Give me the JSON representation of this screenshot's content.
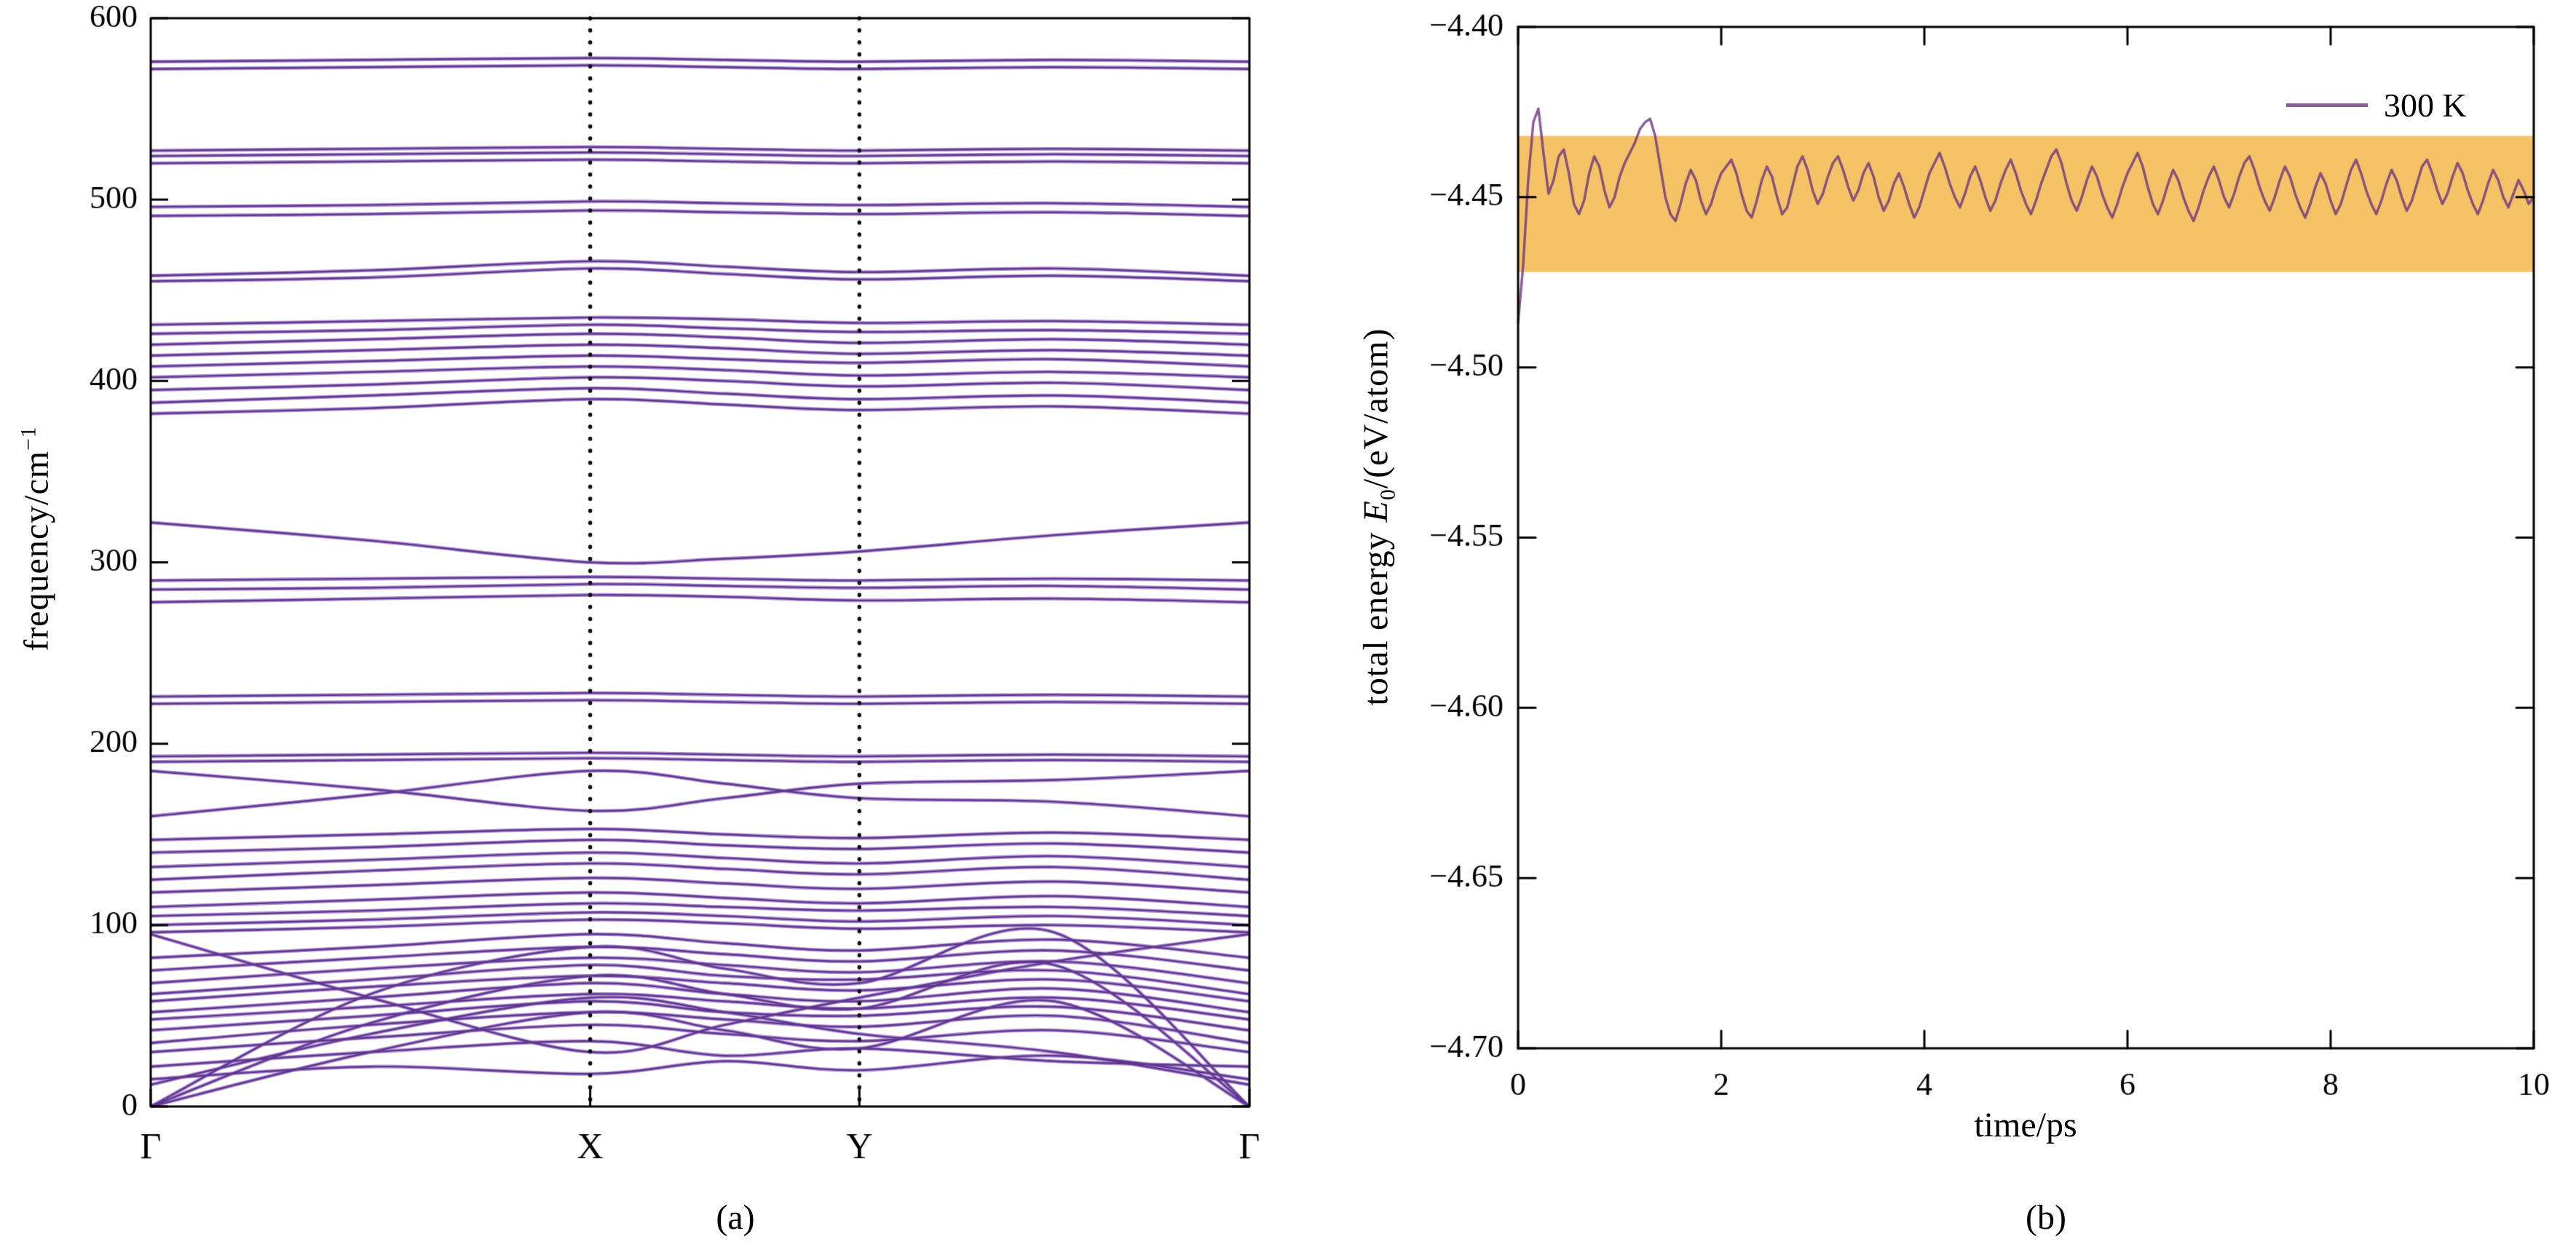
{
  "figure": {
    "background": "#ffffff"
  },
  "colors": {
    "axis": "#000000",
    "band_line": "#5e348f",
    "band_halo": "rgba(164,132,201,0.85)",
    "dotted_line": "#111111",
    "band_shade": "#f5c366",
    "trace": "rgba(109,51,128,0.8)"
  },
  "chart_data": [
    {
      "type": "line",
      "subtype": "phonon-band-structure",
      "panel": "a",
      "caption": "(a)",
      "title": "",
      "xlabel": "",
      "ylabel": "frequency/cm−1",
      "ylabel_parts": {
        "base": "frequency/cm",
        "superscript": "−1"
      },
      "ylim": [
        0,
        600
      ],
      "yticks": [
        0,
        100,
        200,
        300,
        400,
        500,
        600
      ],
      "kpath_labels": [
        "Γ",
        "X",
        "Y",
        "Γ"
      ],
      "kpath_positions": [
        0,
        0.4,
        0.645,
        1
      ],
      "vertical_lines": [
        0.4,
        0.645
      ],
      "grid": false,
      "control_positions": [
        0,
        0.2,
        0.4,
        0.5225,
        0.645,
        0.8225,
        1
      ],
      "bands": [
        [
          0,
          30,
          52,
          42,
          32,
          58,
          0
        ],
        [
          0,
          46,
          72,
          62,
          54,
          78,
          0
        ],
        [
          0,
          62,
          88,
          76,
          68,
          96,
          0
        ],
        [
          12,
          40,
          60,
          52,
          40,
          30,
          12
        ],
        [
          95,
          60,
          30,
          45,
          60,
          80,
          95
        ],
        [
          15,
          22,
          18,
          25,
          20,
          28,
          15
        ],
        [
          22,
          30,
          36,
          28,
          32,
          25,
          22
        ],
        [
          30,
          38,
          45,
          40,
          36,
          42,
          30
        ],
        [
          35,
          45,
          52,
          48,
          44,
          50,
          35
        ],
        [
          42,
          50,
          58,
          52,
          50,
          55,
          42
        ],
        [
          48,
          55,
          62,
          58,
          54,
          60,
          48
        ],
        [
          52,
          60,
          68,
          62,
          58,
          65,
          52
        ],
        [
          58,
          66,
          72,
          68,
          64,
          70,
          58
        ],
        [
          62,
          70,
          78,
          72,
          70,
          75,
          62
        ],
        [
          68,
          76,
          82,
          78,
          74,
          80,
          68
        ],
        [
          75,
          82,
          88,
          84,
          80,
          86,
          75
        ],
        [
          82,
          88,
          95,
          90,
          86,
          92,
          82
        ],
        [
          96,
          99,
          103,
          101,
          98,
          100,
          96
        ],
        [
          100,
          103,
          107,
          105,
          102,
          105,
          100
        ],
        [
          105,
          108,
          112,
          110,
          108,
          110,
          105
        ],
        [
          110,
          114,
          118,
          115,
          112,
          116,
          110
        ],
        [
          118,
          122,
          126,
          123,
          120,
          124,
          118
        ],
        [
          125,
          130,
          134,
          131,
          128,
          132,
          125
        ],
        [
          132,
          136,
          140,
          137,
          134,
          138,
          132
        ],
        [
          140,
          143,
          147,
          144,
          142,
          145,
          140
        ],
        [
          147,
          150,
          153,
          150,
          148,
          151,
          147
        ],
        [
          160,
          172,
          185,
          178,
          170,
          168,
          160
        ],
        [
          185,
          175,
          163,
          170,
          178,
          180,
          185
        ],
        [
          190,
          191,
          192,
          191,
          190,
          191,
          190
        ],
        [
          193,
          194,
          195,
          194,
          193,
          194,
          193
        ],
        [
          222,
          223,
          224,
          223,
          222,
          223,
          222
        ],
        [
          226,
          227,
          228,
          227,
          226,
          227,
          226
        ],
        [
          278,
          280,
          282,
          281,
          279,
          280,
          278
        ],
        [
          285,
          286,
          288,
          287,
          286,
          287,
          285
        ],
        [
          290,
          291,
          292,
          291,
          290,
          291,
          290
        ],
        [
          322,
          312,
          300,
          302,
          306,
          315,
          322
        ],
        [
          382,
          385,
          390,
          387,
          384,
          386,
          382
        ],
        [
          388,
          392,
          396,
          393,
          390,
          392,
          388
        ],
        [
          395,
          398,
          402,
          400,
          397,
          399,
          395
        ],
        [
          402,
          405,
          408,
          406,
          403,
          405,
          402
        ],
        [
          408,
          411,
          414,
          412,
          410,
          412,
          408
        ],
        [
          414,
          417,
          420,
          418,
          415,
          417,
          414
        ],
        [
          420,
          423,
          426,
          424,
          421,
          423,
          420
        ],
        [
          426,
          428,
          431,
          429,
          427,
          428,
          426
        ],
        [
          431,
          433,
          435,
          434,
          432,
          433,
          431
        ],
        [
          455,
          457,
          462,
          459,
          456,
          458,
          455
        ],
        [
          458,
          461,
          466,
          463,
          460,
          462,
          458
        ],
        [
          491,
          492,
          494,
          493,
          492,
          493,
          491
        ],
        [
          496,
          497,
          499,
          498,
          497,
          498,
          496
        ],
        [
          520,
          521,
          522,
          521,
          520,
          521,
          520
        ],
        [
          524,
          525,
          526,
          525,
          524,
          525,
          524
        ],
        [
          527,
          528,
          529,
          528,
          527,
          528,
          527
        ],
        [
          572,
          573,
          574,
          573,
          572,
          573,
          572
        ],
        [
          576,
          577,
          578,
          577,
          576,
          577,
          576
        ]
      ]
    },
    {
      "type": "line",
      "subtype": "md-total-energy",
      "panel": "b",
      "caption": "(b)",
      "title": "",
      "xlabel": "time/ps",
      "ylabel": "total energy E0/(eV/atom)",
      "ylabel_parts": {
        "prefix": "total energy ",
        "symbol": "E",
        "subscript": "0",
        "suffix": "/(eV/atom)"
      },
      "xlim": [
        0,
        10
      ],
      "ylim": [
        -4.7,
        -4.4
      ],
      "xticks": [
        0,
        2,
        4,
        6,
        8,
        10
      ],
      "xtick_labels": [
        "0",
        "2",
        "4",
        "6",
        "8",
        "10"
      ],
      "yticks": [
        -4.4,
        -4.45,
        -4.5,
        -4.55,
        -4.6,
        -4.65,
        -4.7
      ],
      "ytick_labels": [
        "−4.40",
        "−4.45",
        "−4.50",
        "−4.55",
        "−4.60",
        "−4.65",
        "−4.70"
      ],
      "grid": false,
      "legend": {
        "position": "top-right",
        "entries": [
          {
            "label": "300 K"
          }
        ]
      },
      "shaded_band": {
        "ymin": -4.472,
        "ymax": -4.432
      },
      "series": [
        {
          "name": "300 K",
          "t_start": 0,
          "t_step": 0.05,
          "values": [
            -4.487,
            -4.47,
            -4.445,
            -4.428,
            -4.424,
            -4.437,
            -4.449,
            -4.445,
            -4.438,
            -4.436,
            -4.443,
            -4.452,
            -4.455,
            -4.451,
            -4.443,
            -4.438,
            -4.441,
            -4.448,
            -4.453,
            -4.45,
            -4.444,
            -4.44,
            -4.437,
            -4.434,
            -4.43,
            -4.428,
            -4.427,
            -4.432,
            -4.441,
            -4.45,
            -4.455,
            -4.457,
            -4.452,
            -4.446,
            -4.442,
            -4.445,
            -4.451,
            -4.455,
            -4.452,
            -4.447,
            -4.443,
            -4.441,
            -4.439,
            -4.443,
            -4.449,
            -4.454,
            -4.456,
            -4.451,
            -4.445,
            -4.441,
            -4.444,
            -4.45,
            -4.455,
            -4.453,
            -4.447,
            -4.441,
            -4.438,
            -4.442,
            -4.448,
            -4.452,
            -4.449,
            -4.444,
            -4.44,
            -4.438,
            -4.442,
            -4.447,
            -4.451,
            -4.448,
            -4.443,
            -4.44,
            -4.444,
            -4.45,
            -4.454,
            -4.451,
            -4.446,
            -4.443,
            -4.447,
            -4.452,
            -4.456,
            -4.453,
            -4.448,
            -4.443,
            -4.44,
            -4.437,
            -4.441,
            -4.446,
            -4.45,
            -4.453,
            -4.449,
            -4.444,
            -4.441,
            -4.445,
            -4.45,
            -4.454,
            -4.451,
            -4.446,
            -4.442,
            -4.439,
            -4.443,
            -4.448,
            -4.452,
            -4.455,
            -4.451,
            -4.446,
            -4.442,
            -4.438,
            -4.436,
            -4.44,
            -4.446,
            -4.451,
            -4.454,
            -4.45,
            -4.445,
            -4.441,
            -4.444,
            -4.449,
            -4.453,
            -4.456,
            -4.452,
            -4.447,
            -4.443,
            -4.44,
            -4.437,
            -4.441,
            -4.447,
            -4.452,
            -4.455,
            -4.451,
            -4.446,
            -4.442,
            -4.445,
            -4.45,
            -4.454,
            -4.457,
            -4.453,
            -4.448,
            -4.444,
            -4.441,
            -4.445,
            -4.45,
            -4.453,
            -4.449,
            -4.444,
            -4.44,
            -4.438,
            -4.442,
            -4.447,
            -4.451,
            -4.454,
            -4.45,
            -4.445,
            -4.441,
            -4.444,
            -4.449,
            -4.453,
            -4.456,
            -4.452,
            -4.447,
            -4.443,
            -4.446,
            -4.451,
            -4.455,
            -4.452,
            -4.447,
            -4.442,
            -4.439,
            -4.443,
            -4.448,
            -4.452,
            -4.455,
            -4.451,
            -4.446,
            -4.442,
            -4.445,
            -4.45,
            -4.454,
            -4.451,
            -4.446,
            -4.441,
            -4.439,
            -4.443,
            -4.448,
            -4.452,
            -4.449,
            -4.444,
            -4.44,
            -4.443,
            -4.448,
            -4.452,
            -4.455,
            -4.451,
            -4.446,
            -4.442,
            -4.445,
            -4.45,
            -4.453,
            -4.449,
            -4.445,
            -4.448,
            -4.452,
            -4.45
          ]
        }
      ]
    }
  ]
}
